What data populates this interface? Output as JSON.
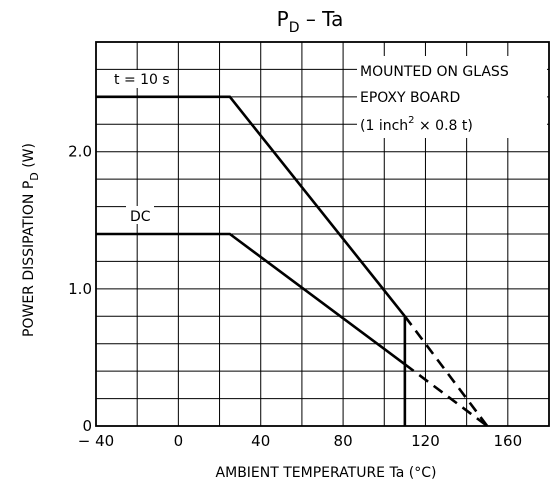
{
  "chart_data": {
    "type": "line",
    "title": {
      "main": "P",
      "sub": "D",
      "rest": " –  Ta"
    },
    "xlabel": "AMBIENT TEMPERATURE    Ta    (°C)",
    "ylabel": {
      "main": "POWER DISSIPATION  P",
      "sub": "D",
      "rest": "    (W)"
    },
    "xlim": [
      -40,
      180
    ],
    "ylim": [
      0,
      2.8
    ],
    "x_ticks": [
      {
        "value": -40,
        "label": "− 40"
      },
      {
        "value": 0,
        "label": "0"
      },
      {
        "value": 40,
        "label": "40"
      },
      {
        "value": 80,
        "label": "80"
      },
      {
        "value": 120,
        "label": "120"
      },
      {
        "value": 160,
        "label": "160"
      }
    ],
    "y_ticks": [
      {
        "value": 0,
        "label": "0"
      },
      {
        "value": 1.0,
        "label": "1.0"
      },
      {
        "value": 2.0,
        "label": "2.0"
      }
    ],
    "grid": true,
    "grid_x_step": 20,
    "grid_y_step": 0.2,
    "series": [
      {
        "name": "t = 10 s",
        "x": [
          -40,
          25,
          110
        ],
        "y": [
          2.4,
          2.4,
          0.8
        ],
        "style": "solid"
      },
      {
        "name": "DC",
        "x": [
          -40,
          25,
          110
        ],
        "y": [
          1.4,
          1.4,
          0.45
        ],
        "style": "solid"
      }
    ],
    "extensions": [
      {
        "x": [
          110,
          150
        ],
        "y": [
          0.8,
          0.0
        ],
        "style": "dashed"
      },
      {
        "x": [
          110,
          150
        ],
        "y": [
          0.45,
          0.0
        ],
        "style": "dashed"
      }
    ],
    "cutoff": {
      "x": 110,
      "y": [
        0,
        0.8
      ]
    },
    "annotations": {
      "line1": "MOUNTED ON GLASS",
      "line2": "EPOXY BOARD",
      "line3": {
        "pre": "(1 inch",
        "sup": "2",
        "post": " × 0.8 t)"
      }
    }
  }
}
